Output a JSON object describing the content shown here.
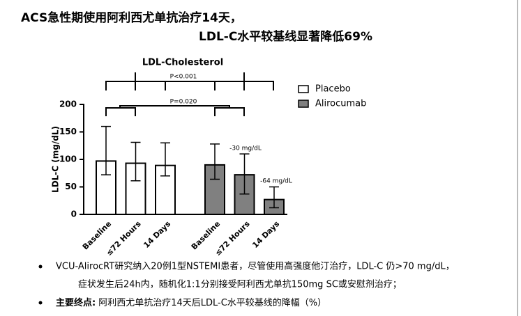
{
  "header": {
    "line1": "ACS急性期使用阿利西尤单抗治疗14天，",
    "line2": "LDL-C水平较基线显著降低69%"
  },
  "chart_data": {
    "type": "bar",
    "title": "LDL-Cholesterol",
    "y_label": "LDL-C (mg/dL)",
    "categories": [
      "Baseline",
      "≤72 Hours",
      "14 Days"
    ],
    "series": [
      {
        "name": "Placebo",
        "color": "#ffffff",
        "values": [
          97,
          93,
          89
        ],
        "errors_upper": [
          63,
          38,
          41
        ],
        "errors_lower": [
          25,
          32,
          19
        ]
      },
      {
        "name": "Alirocumab",
        "color": "#808080",
        "values": [
          90,
          72,
          27
        ],
        "errors_upper": [
          38,
          38,
          23
        ],
        "errors_lower": [
          26,
          35,
          15
        ]
      }
    ],
    "ylim": [
      0,
      200
    ],
    "yticks": [
      0,
      50,
      100,
      150,
      200
    ],
    "annotations": [
      "P<0.001",
      "P=0.020",
      "-30 mg/dL",
      "-64 mg/dL"
    ]
  },
  "bullets": [
    [
      "VCU-AlirocRT研究纳入20例1型NSTEMI患者，尽管使用高强度他汀治疗，LDL-C 仍>70 mg/dL，",
      "症状发生后24h内，随机化1:1分别接受阿利西尤单抗150mg SC或安慰剂治疗；"
    ],
    [
      "主要终点:",
      "阿利西尤单抗治疗14天后LDL-C水平较基线的降幅（%）"
    ]
  ]
}
